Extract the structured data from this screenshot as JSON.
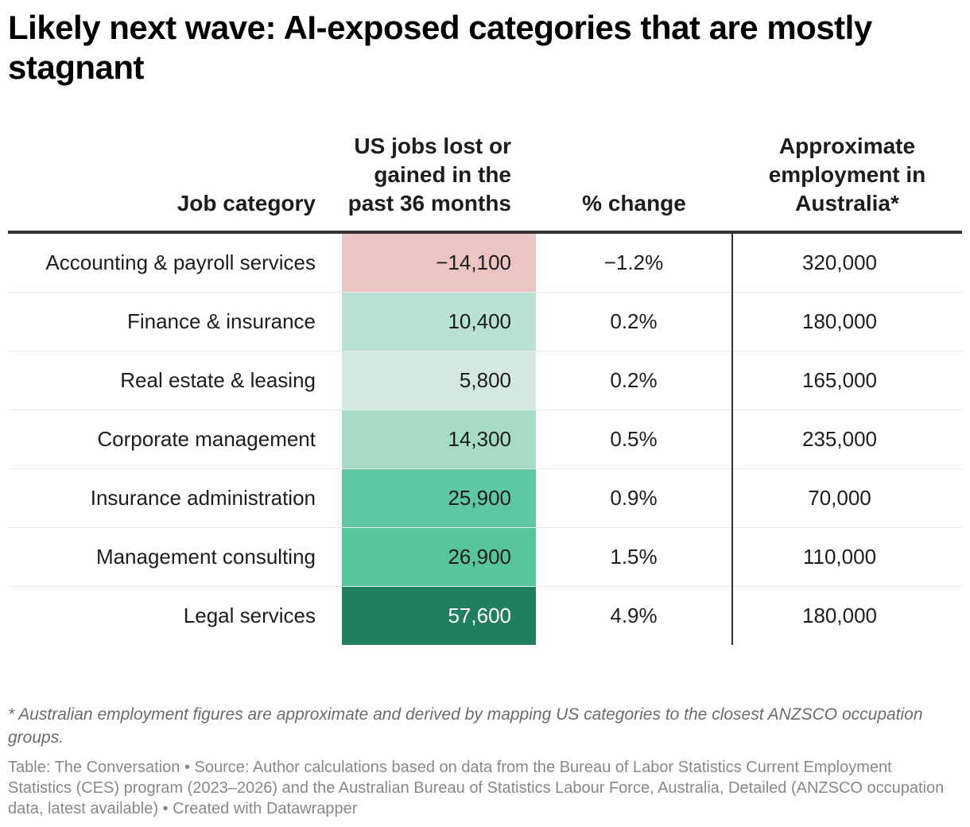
{
  "chart_data": {
    "type": "table",
    "title": "Likely next wave: AI-exposed categories that are mostly stagnant",
    "columns": [
      "Job category",
      "US jobs lost or gained in the past 36 months",
      "% change",
      "Approximate employment in Australia*"
    ],
    "rows": [
      {
        "category": "Accounting & payroll services",
        "jobs": -14100,
        "jobs_label": "−14,100",
        "pct": -1.2,
        "pct_label": "−1.2%",
        "aus": 320000,
        "aus_label": "320,000",
        "cell_color": "#ecc5c2",
        "text_color": "#1d1d1d"
      },
      {
        "category": "Finance & insurance",
        "jobs": 10400,
        "jobs_label": "10,400",
        "pct": 0.2,
        "pct_label": "0.2%",
        "aus": 180000,
        "aus_label": "180,000",
        "cell_color": "#bae2d2",
        "text_color": "#1d1d1d"
      },
      {
        "category": "Real estate & leasing",
        "jobs": 5800,
        "jobs_label": "5,800",
        "pct": 0.2,
        "pct_label": "0.2%",
        "aus": 165000,
        "aus_label": "165,000",
        "cell_color": "#d3e8df",
        "text_color": "#1d1d1d"
      },
      {
        "category": "Corporate management",
        "jobs": 14300,
        "jobs_label": "14,300",
        "pct": 0.5,
        "pct_label": "0.5%",
        "aus": 235000,
        "aus_label": "235,000",
        "cell_color": "#a7dbc5",
        "text_color": "#1d1d1d"
      },
      {
        "category": "Insurance administration",
        "jobs": 25900,
        "jobs_label": "25,900",
        "pct": 0.9,
        "pct_label": "0.9%",
        "aus": 70000,
        "aus_label": "70,000",
        "cell_color": "#5fc7a1",
        "text_color": "#1d1d1d"
      },
      {
        "category": "Management consulting",
        "jobs": 26900,
        "jobs_label": "26,900",
        "pct": 1.5,
        "pct_label": "1.5%",
        "aus": 110000,
        "aus_label": "110,000",
        "cell_color": "#57c49c",
        "text_color": "#1d1d1d"
      },
      {
        "category": "Legal services",
        "jobs": 57600,
        "jobs_label": "57,600",
        "pct": 4.9,
        "pct_label": "4.9%",
        "aus": 180000,
        "aus_label": "180,000",
        "cell_color": "#217e60",
        "text_color": "#ffffff"
      }
    ]
  },
  "title": "Likely next wave: AI-exposed categories that are mostly stagnant",
  "headers": {
    "category": "Job category",
    "jobs": "US jobs lost or gained in the past 36 months",
    "pct": "% change",
    "aus": "Approximate employment in Australia*"
  },
  "footnote": "* Australian employment figures are approximate and derived by mapping US categories to the closest ANZSCO occupation groups.",
  "source": "Table: The Conversation • Source: Author calculations based on data from the Bureau of Labor Statistics Current Employment Statistics (CES) program (2023–2026) and the Australian Bureau of Statistics Labour Force, Australia, Detailed (ANZSCO occupation data, latest available) • Created with Datawrapper"
}
